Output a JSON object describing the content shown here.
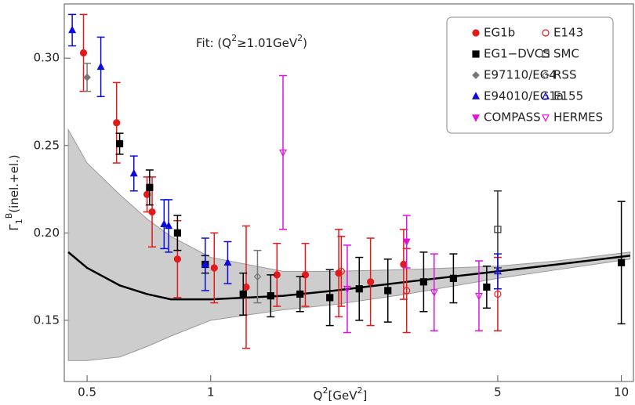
{
  "chart_data": {
    "type": "scatter",
    "annotation": [
      {
        "text": "Fit:  (Q"
      },
      {
        "text": "2",
        "sup": true
      },
      {
        "text": "≥1.01GeV"
      },
      {
        "text": "2",
        "sup": true
      },
      {
        "text": ")"
      }
    ],
    "x_label": [
      {
        "text": "Q"
      },
      {
        "text": "2",
        "sup": true
      },
      {
        "text": "[GeV"
      },
      {
        "text": "2",
        "sup": true
      },
      {
        "text": "]"
      }
    ],
    "y_label": [
      {
        "text": "Γ"
      },
      {
        "text": "1",
        "sub": true
      },
      {
        "text": "B",
        "sup": true
      },
      {
        "text": "(inel.+el.)"
      }
    ],
    "xscale": "log",
    "xlim": [
      0.44,
      10.7
    ],
    "ylim": [
      0.115,
      0.331
    ],
    "xticks": [
      0.5,
      1,
      5,
      10
    ],
    "yticks": [
      0.15,
      {
        "value": 0.2,
        "label": "0.20"
      },
      0.25,
      {
        "value": 0.3,
        "label": "0.30"
      }
    ],
    "legend": "top-right",
    "series": [
      {
        "name": "EG1b",
        "color": "#e31a1c",
        "marker": "circle",
        "filled": true,
        "x": [
          0.49,
          0.59,
          0.7,
          0.72,
          0.83,
          1.02,
          1.22,
          1.45,
          1.7,
          2.05,
          2.45,
          2.95
        ],
        "values": [
          0.303,
          0.263,
          0.222,
          0.212,
          0.185,
          0.18,
          0.169,
          0.176,
          0.176,
          0.177,
          0.172,
          0.182
        ],
        "errors": [
          0.022,
          0.023,
          0.01,
          0.02,
          0.022,
          0.02,
          0.035,
          0.018,
          0.018,
          0.025,
          0.025,
          0.02
        ]
      },
      {
        "name": "E143",
        "color": "#e31a1c",
        "marker": "circle",
        "filled": false,
        "x": [
          2.08,
          3.0,
          5.0
        ],
        "values": [
          0.178,
          0.167,
          0.165
        ],
        "errors": [
          0.02,
          0.024,
          0.021
        ]
      },
      {
        "name": "EG1−DVCS",
        "color": "#000000",
        "marker": "square",
        "filled": true,
        "x": [
          0.6,
          0.71,
          0.83,
          0.97,
          1.2,
          1.4,
          1.65,
          1.95,
          2.3,
          2.7,
          3.3,
          3.9,
          4.7,
          10.0
        ],
        "values": [
          0.251,
          0.226,
          0.2,
          0.182,
          0.165,
          0.164,
          0.165,
          0.163,
          0.168,
          0.167,
          0.172,
          0.174,
          0.169,
          0.183
        ],
        "errors": [
          0.006,
          0.01,
          0.01,
          0.005,
          0.012,
          0.012,
          0.01,
          0.016,
          0.018,
          0.018,
          0.017,
          0.014,
          0.012,
          0.035
        ]
      },
      {
        "name": "SMC",
        "color": "#333333",
        "marker": "square",
        "filled": false,
        "x": [
          5.0
        ],
        "values": [
          0.202
        ],
        "errors": [
          0.022
        ]
      },
      {
        "name": "E97110/EG4",
        "color": "#777777",
        "marker": "diamond",
        "filled": true,
        "x": [
          0.5
        ],
        "values": [
          0.289
        ],
        "errors": [
          0.008
        ]
      },
      {
        "name": "RSS",
        "color": "#777777",
        "marker": "diamond",
        "filled": false,
        "x": [
          1.3
        ],
        "values": [
          0.175
        ],
        "errors": [
          0.015
        ]
      },
      {
        "name": "E94010/EG1a",
        "color": "#0a0ae0",
        "marker": "triangle-up",
        "filled": true,
        "x": [
          0.46,
          0.54,
          0.65,
          0.77,
          0.79,
          0.97,
          1.1
        ],
        "values": [
          0.316,
          0.295,
          0.234,
          0.205,
          0.204,
          0.182,
          0.183
        ],
        "errors": [
          0.009,
          0.017,
          0.01,
          0.014,
          0.015,
          0.015,
          0.012
        ]
      },
      {
        "name": "E155",
        "color": "#0a0ae0",
        "marker": "triangle-up",
        "filled": false,
        "x": [
          5.0
        ],
        "values": [
          0.178
        ],
        "errors": [
          0.01
        ]
      },
      {
        "name": "COMPASS",
        "color": "#e010e0",
        "marker": "triangle-down",
        "filled": true,
        "x": [
          3.0
        ],
        "values": [
          0.195
        ],
        "errors": [
          0.015
        ]
      },
      {
        "name": "HERMES",
        "color": "#e010e0",
        "marker": "triangle-down",
        "filled": false,
        "x": [
          1.5,
          2.15,
          3.5,
          4.5
        ],
        "values": [
          0.246,
          0.168,
          0.166,
          0.164
        ],
        "errors": [
          0.044,
          0.025,
          0.022,
          0.02
        ]
      }
    ],
    "fit": {
      "color": "#000000",
      "band_color": "#c8c8c8",
      "x": [
        0.45,
        0.5,
        0.6,
        0.7,
        0.8,
        1.0,
        1.5,
        2.0,
        3.0,
        5.0,
        7.0,
        10.5
      ],
      "values": [
        0.189,
        0.18,
        0.17,
        0.165,
        0.162,
        0.162,
        0.164,
        0.167,
        0.172,
        0.178,
        0.182,
        0.187
      ],
      "upper": [
        0.259,
        0.24,
        0.222,
        0.208,
        0.198,
        0.186,
        0.178,
        0.178,
        0.179,
        0.181,
        0.184,
        0.189
      ],
      "lower": [
        0.127,
        0.127,
        0.129,
        0.135,
        0.141,
        0.15,
        0.156,
        0.159,
        0.165,
        0.174,
        0.179,
        0.185
      ]
    }
  }
}
